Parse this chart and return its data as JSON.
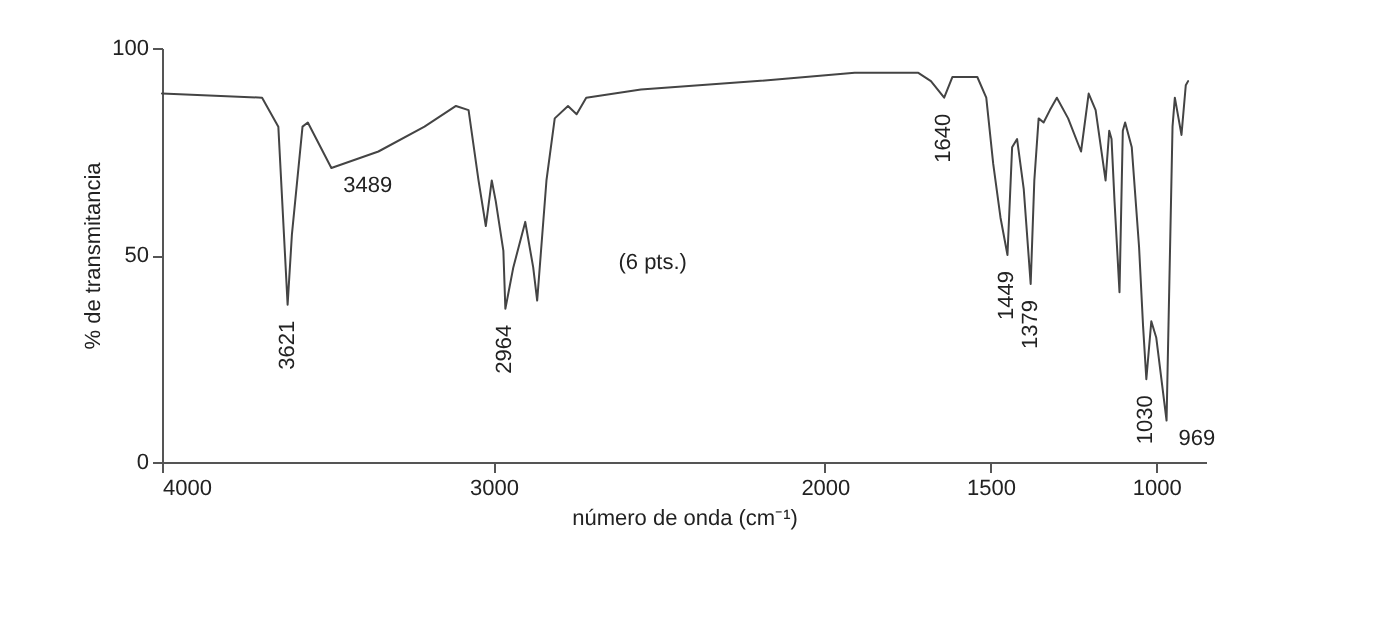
{
  "chart_data": {
    "type": "line",
    "xlabel": "número de onda (cm⁻¹)",
    "ylabel": "% de transmitancia",
    "x": [
      4000,
      3698,
      3649,
      3621,
      3608,
      3576,
      3560,
      3489,
      3347,
      3208,
      3113,
      3075,
      3045,
      3023,
      3005,
      2993,
      2970,
      2964,
      2940,
      2904,
      2880,
      2868,
      2840,
      2815,
      2775,
      2749,
      2720,
      2555,
      2204,
      1910,
      1718,
      1680,
      1640,
      1615,
      1540,
      1513,
      1492,
      1470,
      1449,
      1435,
      1420,
      1400,
      1379,
      1368,
      1355,
      1340,
      1321,
      1300,
      1266,
      1227,
      1204,
      1183,
      1153,
      1142,
      1135,
      1126,
      1111,
      1101,
      1094,
      1074,
      1052,
      1040,
      1030,
      1015,
      1000,
      969,
      951,
      944,
      924,
      911,
      904
    ],
    "series": [
      {
        "color": "#444444",
        "values": [
          89,
          88,
          81,
          38,
          55,
          81,
          82,
          71,
          75,
          81,
          86,
          85,
          68,
          57,
          68,
          63,
          51,
          37,
          47,
          58,
          47,
          39,
          68,
          83,
          86,
          84,
          88,
          90,
          92,
          94,
          94,
          92,
          88,
          93,
          93,
          88,
          72,
          59,
          50,
          76,
          78,
          66,
          43,
          68,
          83,
          82,
          85,
          88,
          83,
          75,
          89,
          85,
          68,
          80,
          78,
          63,
          41,
          80,
          82,
          76,
          52,
          33,
          20,
          34,
          30,
          10,
          81,
          88,
          79,
          91,
          92
        ]
      }
    ],
    "xlim": [
      4000,
      850
    ],
    "xticks": [
      4000,
      3000,
      2000,
      1500,
      1000
    ],
    "ylim": [
      0,
      100
    ],
    "yticks": [
      0,
      50,
      100
    ],
    "grid": false,
    "line_style": "solid",
    "marker": "none",
    "annotations": [
      {
        "text": "3621",
        "x": 3621,
        "y": 38
      },
      {
        "text": "3489",
        "x": 3489,
        "y": 71
      },
      {
        "text": "2964",
        "x": 2964,
        "y": 37
      },
      {
        "text": "1640",
        "x": 1640,
        "y": 88
      },
      {
        "text": "1449",
        "x": 1449,
        "y": 50
      },
      {
        "text": "1379",
        "x": 1379,
        "y": 43
      },
      {
        "text": "1030",
        "x": 1030,
        "y": 20
      },
      {
        "text": "969",
        "x": 969,
        "y": 10
      },
      "(6 pts.)"
    ]
  }
}
